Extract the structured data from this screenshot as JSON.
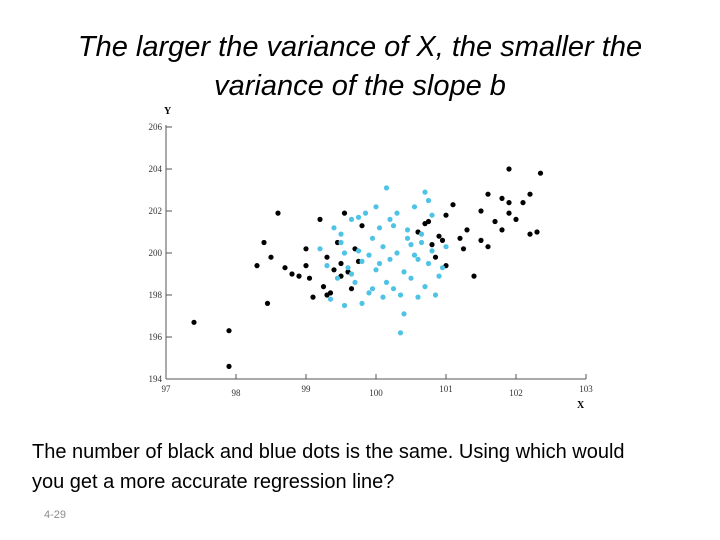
{
  "slide": {
    "title_line1": "The larger the variance of X, the smaller the",
    "title_line2": "variance of  the slope b",
    "question_line1": "The number of black and blue dots is the same.  Using which would",
    "question_line2": "you get a more accurate regression line?",
    "slide_number": "4-29"
  },
  "chart_data": {
    "type": "scatter",
    "title": "",
    "xlabel": "X",
    "ylabel": "Y",
    "xlim": [
      97,
      103
    ],
    "ylim": [
      194,
      206
    ],
    "xticks": [
      {
        "value": 97,
        "label": "97"
      },
      {
        "value": 98,
        "label": "98"
      },
      {
        "value": 99,
        "label": "99"
      },
      {
        "value": 100,
        "label": "100"
      },
      {
        "value": 101,
        "label": "101"
      },
      {
        "value": 102,
        "label": "102"
      },
      {
        "value": 103,
        "label": "103"
      }
    ],
    "yticks": [
      {
        "value": 194,
        "label": "194"
      },
      {
        "value": 196,
        "label": "196"
      },
      {
        "value": 198,
        "label": "198"
      },
      {
        "value": 200,
        "label": "200"
      },
      {
        "value": 202,
        "label": "202"
      },
      {
        "value": 204,
        "label": "204"
      },
      {
        "value": 206,
        "label": "206"
      }
    ],
    "grid": false,
    "series": [
      {
        "color": "#000000",
        "points": [
          [
            97.4,
            196.7
          ],
          [
            97.9,
            196.3
          ],
          [
            97.9,
            194.6
          ],
          [
            98.3,
            199.4
          ],
          [
            98.4,
            200.5
          ],
          [
            98.45,
            197.6
          ],
          [
            98.5,
            199.8
          ],
          [
            98.6,
            201.9
          ],
          [
            98.7,
            199.3
          ],
          [
            98.8,
            199.0
          ],
          [
            98.9,
            198.9
          ],
          [
            99.0,
            199.4
          ],
          [
            99.0,
            200.2
          ],
          [
            99.05,
            198.8
          ],
          [
            99.1,
            197.9
          ],
          [
            99.2,
            201.6
          ],
          [
            99.25,
            198.4
          ],
          [
            99.3,
            199.8
          ],
          [
            99.35,
            198.1
          ],
          [
            99.4,
            199.2
          ],
          [
            99.45,
            200.5
          ],
          [
            99.5,
            198.9
          ],
          [
            99.55,
            201.9
          ],
          [
            99.6,
            199.1
          ],
          [
            99.65,
            198.3
          ],
          [
            99.7,
            200.2
          ],
          [
            99.75,
            199.6
          ],
          [
            99.8,
            201.3
          ],
          [
            99.3,
            198.0
          ],
          [
            99.5,
            199.5
          ],
          [
            100.7,
            201.4
          ],
          [
            100.8,
            200.4
          ],
          [
            100.85,
            199.8
          ],
          [
            100.9,
            200.8
          ],
          [
            101.0,
            201.8
          ],
          [
            101.0,
            199.4
          ],
          [
            101.1,
            202.3
          ],
          [
            101.2,
            200.7
          ],
          [
            101.3,
            201.1
          ],
          [
            101.4,
            198.9
          ],
          [
            101.5,
            202.0
          ],
          [
            101.5,
            200.6
          ],
          [
            101.6,
            202.8
          ],
          [
            101.7,
            201.5
          ],
          [
            101.8,
            202.6
          ],
          [
            101.8,
            201.1
          ],
          [
            101.9,
            202.4
          ],
          [
            101.9,
            204.0
          ],
          [
            102.0,
            201.6
          ],
          [
            102.1,
            202.4
          ],
          [
            102.2,
            202.8
          ],
          [
            102.3,
            201.0
          ],
          [
            102.35,
            203.8
          ],
          [
            100.95,
            200.6
          ],
          [
            100.6,
            201.0
          ],
          [
            101.25,
            200.2
          ],
          [
            101.6,
            200.3
          ],
          [
            101.9,
            201.9
          ],
          [
            102.2,
            200.9
          ],
          [
            100.75,
            201.5
          ]
        ]
      },
      {
        "color": "#4ec3e6",
        "points": [
          [
            99.2,
            200.2
          ],
          [
            99.3,
            199.4
          ],
          [
            99.35,
            197.8
          ],
          [
            99.4,
            201.2
          ],
          [
            99.45,
            198.8
          ],
          [
            99.5,
            200.5
          ],
          [
            99.55,
            197.5
          ],
          [
            99.6,
            199.3
          ],
          [
            99.65,
            201.6
          ],
          [
            99.7,
            198.6
          ],
          [
            99.75,
            200.1
          ],
          [
            99.8,
            199.6
          ],
          [
            99.85,
            201.9
          ],
          [
            99.9,
            198.1
          ],
          [
            99.95,
            200.7
          ],
          [
            100.0,
            199.2
          ],
          [
            100.05,
            201.2
          ],
          [
            100.1,
            197.9
          ],
          [
            100.1,
            200.3
          ],
          [
            100.15,
            203.1
          ],
          [
            100.2,
            199.7
          ],
          [
            100.2,
            201.6
          ],
          [
            100.25,
            198.3
          ],
          [
            100.3,
            200.0
          ],
          [
            100.35,
            196.2
          ],
          [
            100.4,
            199.1
          ],
          [
            100.45,
            201.1
          ],
          [
            100.5,
            198.8
          ],
          [
            100.5,
            200.4
          ],
          [
            100.55,
            202.2
          ],
          [
            100.6,
            197.9
          ],
          [
            100.6,
            199.7
          ],
          [
            100.65,
            200.9
          ],
          [
            100.7,
            198.4
          ],
          [
            100.75,
            199.5
          ],
          [
            100.8,
            201.8
          ],
          [
            100.8,
            200.1
          ],
          [
            100.9,
            198.9
          ],
          [
            100.95,
            199.3
          ],
          [
            101.0,
            200.3
          ],
          [
            99.65,
            199.0
          ],
          [
            99.9,
            199.9
          ],
          [
            100.0,
            202.2
          ],
          [
            100.3,
            201.9
          ],
          [
            100.4,
            197.1
          ],
          [
            100.7,
            202.9
          ],
          [
            99.5,
            200.9
          ],
          [
            99.8,
            197.6
          ],
          [
            100.15,
            198.6
          ],
          [
            100.55,
            199.9
          ],
          [
            100.25,
            201.3
          ],
          [
            99.95,
            198.3
          ],
          [
            100.45,
            200.7
          ],
          [
            100.85,
            198.0
          ],
          [
            99.75,
            201.7
          ],
          [
            100.05,
            199.5
          ],
          [
            100.65,
            200.5
          ],
          [
            99.55,
            200.0
          ],
          [
            100.35,
            198.0
          ],
          [
            100.75,
            202.5
          ]
        ]
      }
    ]
  }
}
